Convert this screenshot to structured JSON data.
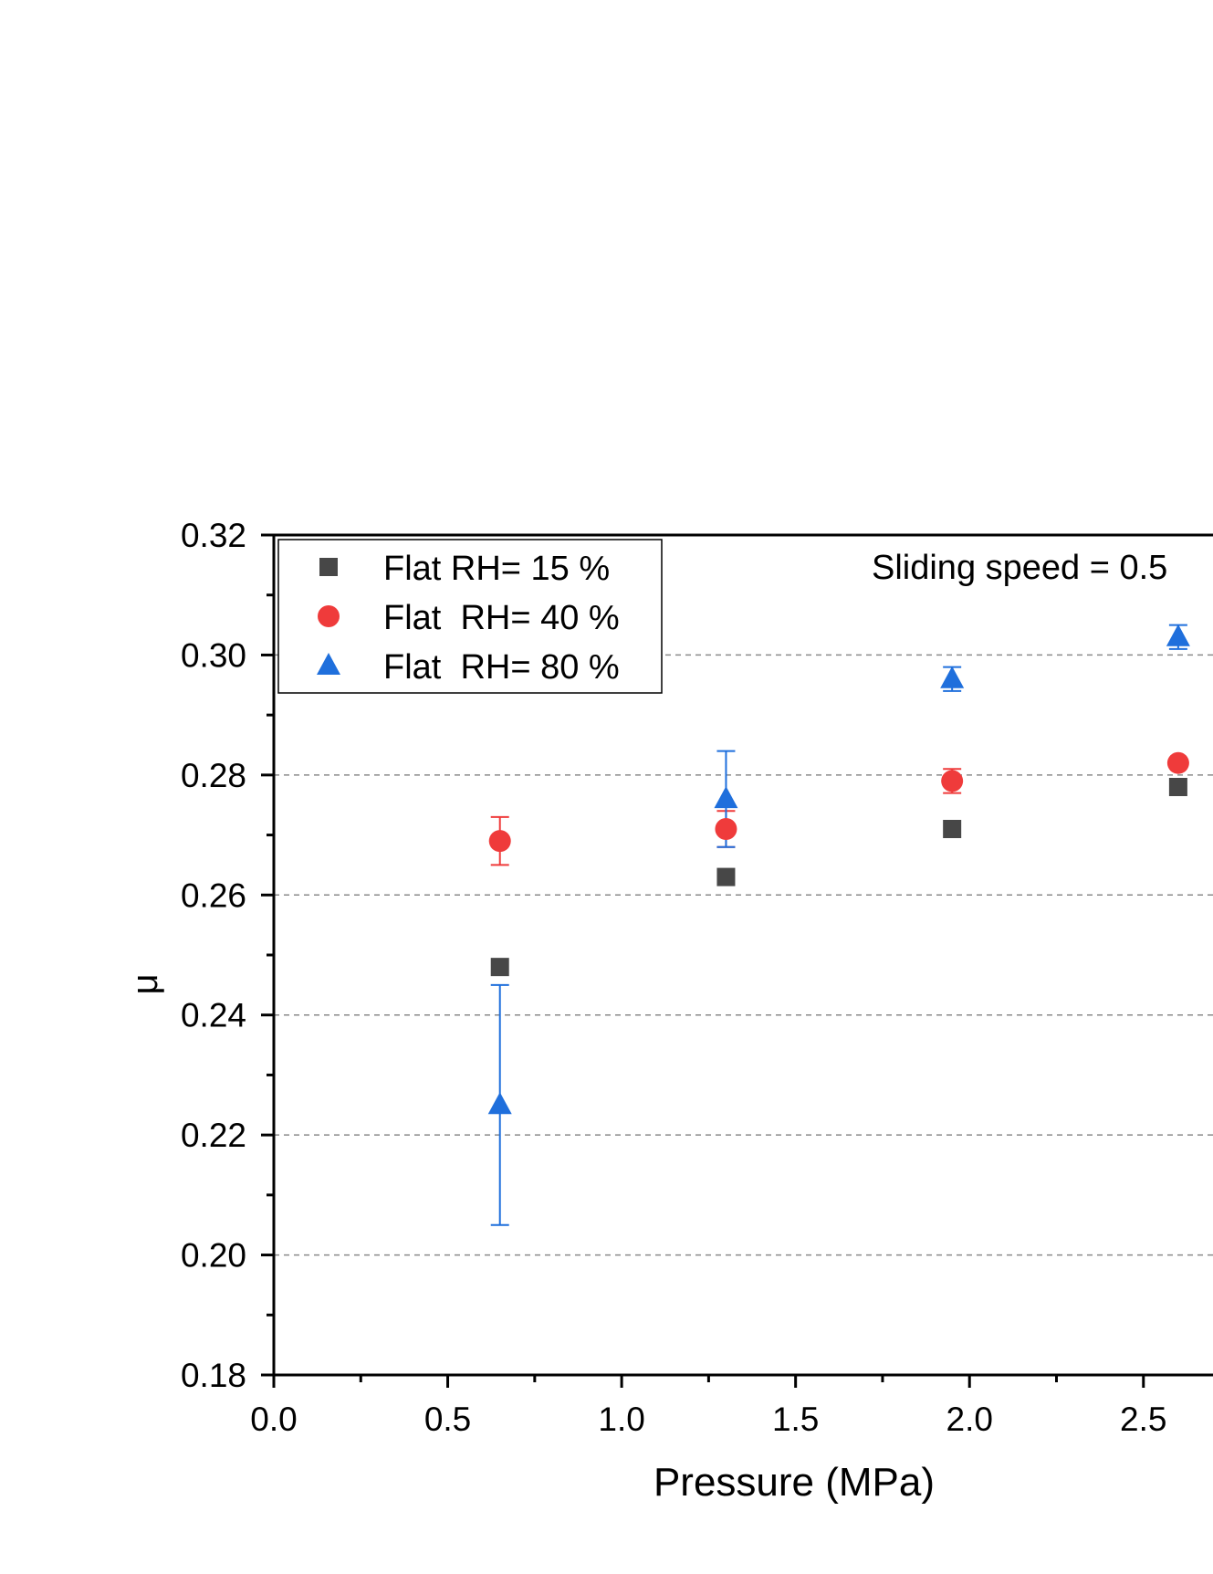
{
  "chart_data": {
    "type": "scatter",
    "annotation": "Sliding speed = 0.5",
    "xlabel": "Pressure (MPa)",
    "ylabel": "μ",
    "xlim": [
      0.0,
      2.7
    ],
    "ylim": [
      0.18,
      0.32
    ],
    "x_ticks": [
      "0.0",
      "0.5",
      "1.0",
      "1.5",
      "2.0",
      "2.5"
    ],
    "y_ticks": [
      "0.18",
      "0.20",
      "0.22",
      "0.24",
      "0.26",
      "0.28",
      "0.30",
      "0.32"
    ],
    "grid": "horizontal dashed at major y ticks",
    "legend_position": "top-left",
    "series": [
      {
        "name": "Flat RH= 15 %",
        "marker": "square",
        "color": "#474747",
        "points": [
          {
            "x": 0.65,
            "y": 0.248
          },
          {
            "x": 1.3,
            "y": 0.263
          },
          {
            "x": 1.95,
            "y": 0.271
          },
          {
            "x": 2.6,
            "y": 0.278
          }
        ]
      },
      {
        "name": "Flat  RH= 40 %",
        "marker": "circle",
        "color": "#ef3b3b",
        "points": [
          {
            "x": 0.65,
            "y": 0.269,
            "err_low": 0.265,
            "err_high": 0.273
          },
          {
            "x": 1.3,
            "y": 0.271,
            "err_low": 0.268,
            "err_high": 0.274
          },
          {
            "x": 1.95,
            "y": 0.279,
            "err_low": 0.277,
            "err_high": 0.281
          },
          {
            "x": 2.6,
            "y": 0.282
          }
        ]
      },
      {
        "name": "Flat  RH= 80 %",
        "marker": "triangle",
        "color": "#1f6fdc",
        "points": [
          {
            "x": 0.65,
            "y": 0.225,
            "err_low": 0.205,
            "err_high": 0.245
          },
          {
            "x": 1.3,
            "y": 0.276,
            "err_low": 0.268,
            "err_high": 0.284
          },
          {
            "x": 1.95,
            "y": 0.296,
            "err_low": 0.294,
            "err_high": 0.298
          },
          {
            "x": 2.6,
            "y": 0.303,
            "err_low": 0.301,
            "err_high": 0.305
          }
        ]
      }
    ]
  }
}
